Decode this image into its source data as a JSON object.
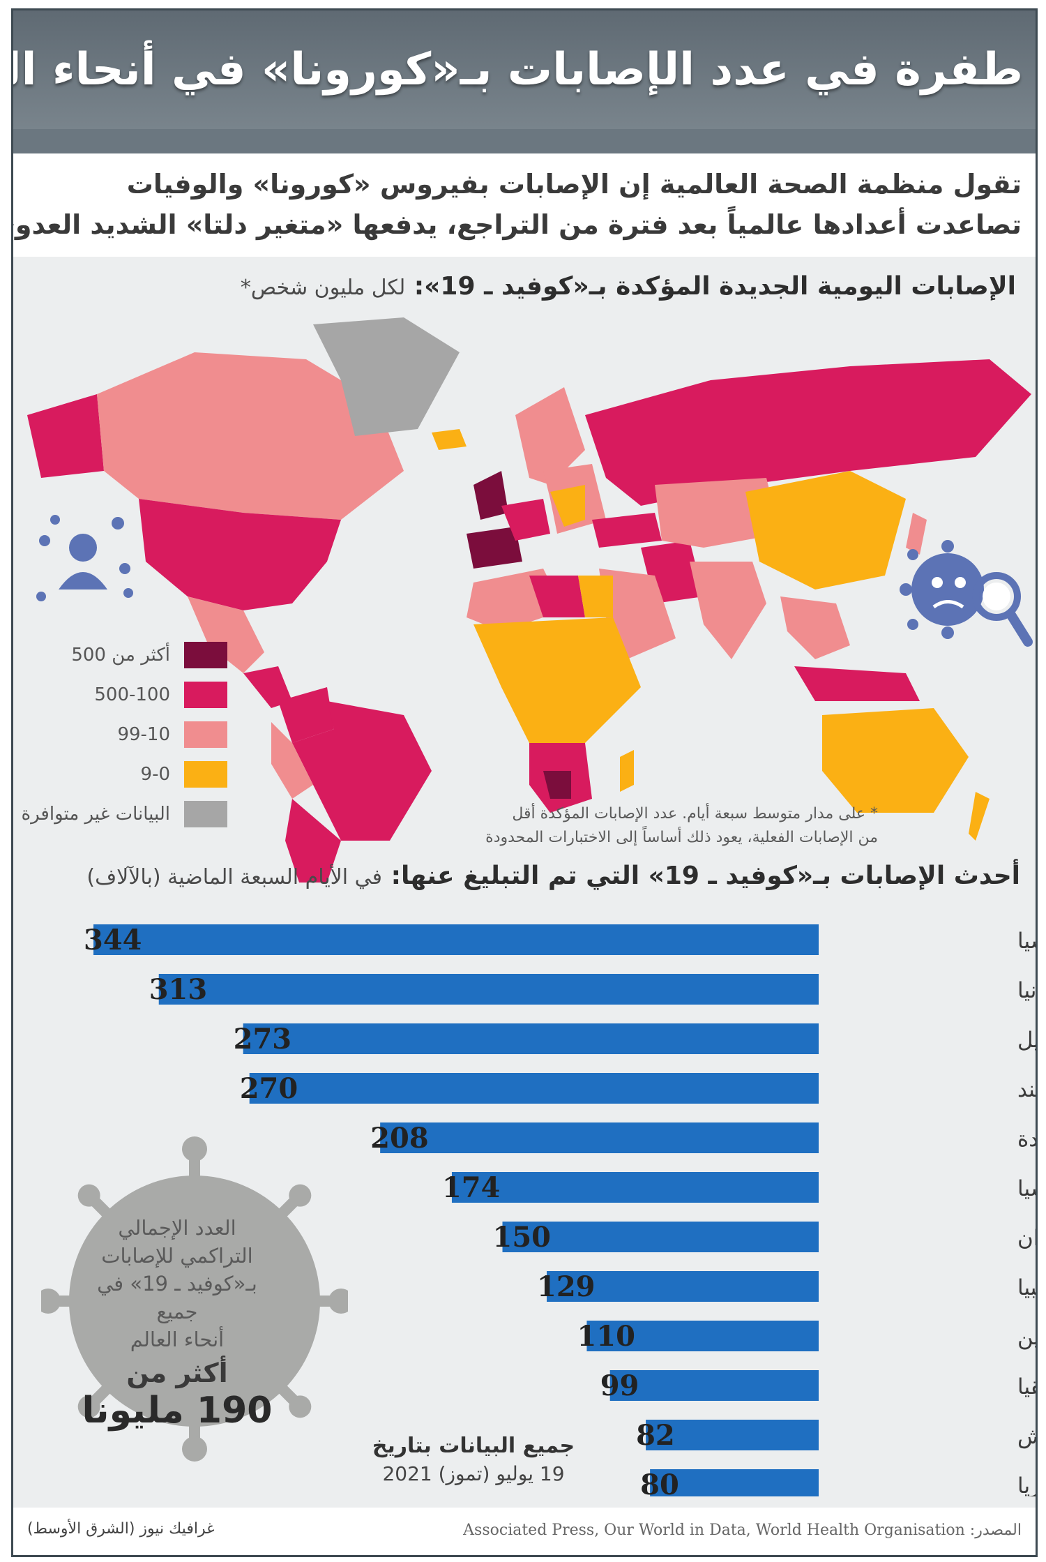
{
  "header": {
    "title": "طفرة في عدد الإصابات بـ«كورونا» في أنحاء العالم بسبب «متغير دلتا»"
  },
  "intro": {
    "line1": "تقول منظمة الصحة العالمية إن الإصابات بفيروس «كورونا» والوفيات",
    "line2": "تصاعدت أعدادها عالمياً بعد فترة من التراجع، يدفعها «متغير دلتا» الشديد العدوى"
  },
  "map": {
    "title": "الإصابات اليومية الجديدة المؤكدة بـ«كوفيد ـ 19»:",
    "subtitle": "لكل مليون شخص*",
    "legend": [
      {
        "label": "أكثر من 500",
        "color": "#7b0d3c"
      },
      {
        "label": "500-100",
        "color": "#d81b5e"
      },
      {
        "label": "99-10",
        "color": "#f08d8f"
      },
      {
        "label": "9-0",
        "color": "#fbb014"
      },
      {
        "label": "البيانات غير متوافرة",
        "color": "#a6a6a6"
      }
    ],
    "footnote_line1": "* على مدار متوسط سبعة أيام. عدد الإصابات المؤكدة أقل",
    "footnote_line2": "من الإصابات الفعلية، يعود ذلك أساساً إلى الاختبارات المحدودة"
  },
  "chart_data": {
    "type": "bar",
    "title": "أحدث الإصابات بـ«كوفيد ـ 19» التي تم التبليغ عنها:",
    "subtitle": "في الأيام السبعة الماضية (بالآلاف)",
    "categories": [
      "إندونيسيا",
      "بريطانيا",
      "البرازيل",
      "الهند",
      "الولايات المتحدة",
      "روسيا",
      "إيران",
      "كولومبيا",
      "الأرجنتين",
      "جنوب أفريقيا",
      "بنغلاديش",
      "ماليزيا"
    ],
    "values": [
      344,
      313,
      273,
      270,
      208,
      174,
      150,
      129,
      110,
      99,
      82,
      80
    ],
    "value_labels": [
      "344",
      "313",
      "273",
      "270",
      "208",
      "174",
      "150",
      "129",
      "110",
      "99",
      "82",
      "80"
    ],
    "xlim": [
      0,
      344
    ],
    "orientation": "horizontal",
    "bar_color": "#1f6fc1"
  },
  "badge": {
    "line1": "العدد الإجمالي",
    "line2": "التراكمي للإصابات",
    "line3": "بـ«كوفيد ـ 19» في جميع",
    "line4": "أنحاء العالم",
    "more_than": "أكثر من",
    "total": "190 مليونا"
  },
  "date_note": {
    "line1": "جميع البيانات بتاريخ",
    "line2": "19 يوليو (تموز) 2021"
  },
  "footer": {
    "source": "المصدر: Associated Press, Our World in Data, World Health Organisation",
    "credit": "غرافيك نيوز (الشرق الأوسط)"
  },
  "icons": {
    "person": "person-with-virus-icon",
    "virus": "virus-magnifier-icon"
  }
}
